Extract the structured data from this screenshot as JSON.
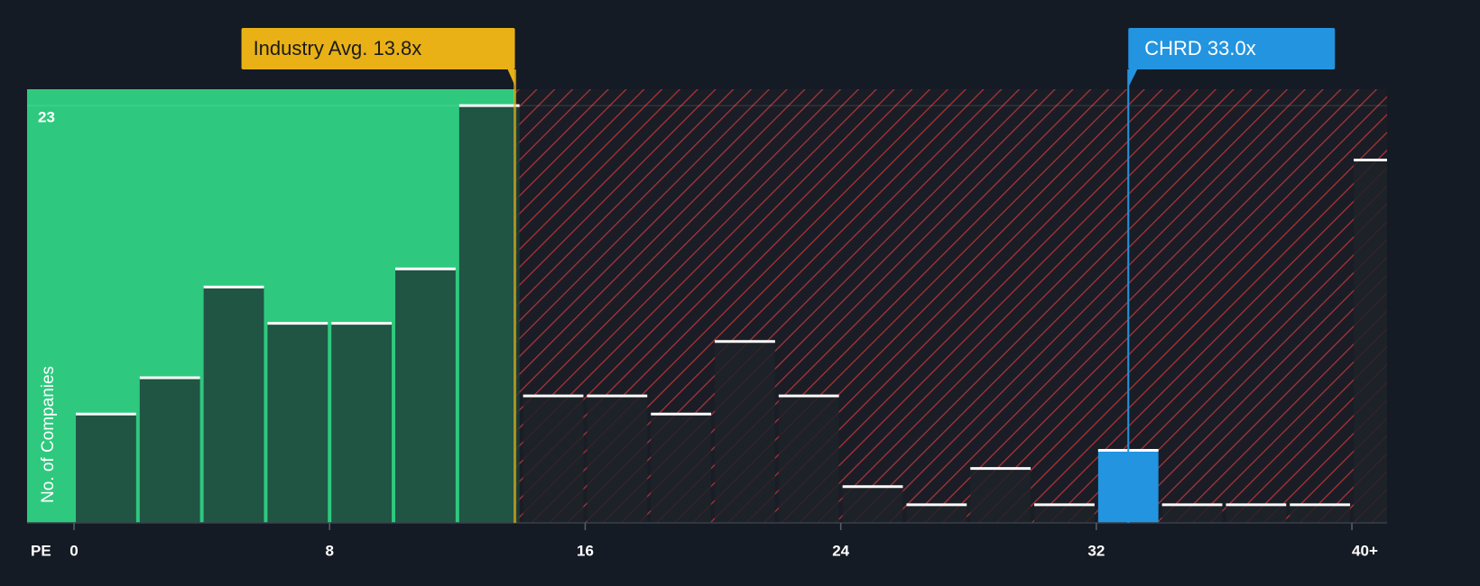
{
  "chart_data": {
    "type": "histogram",
    "x_label": "PE",
    "y_label": "No. of Companies",
    "bins": [
      0,
      2,
      4,
      6,
      8,
      10,
      12,
      14,
      16,
      18,
      20,
      22,
      24,
      26,
      28,
      30,
      32,
      34,
      36,
      38,
      40,
      42
    ],
    "values": [
      6,
      8,
      13,
      11,
      11,
      14,
      23,
      7,
      7,
      6,
      10,
      7,
      2,
      1,
      3,
      1,
      4,
      1,
      1,
      1,
      20
    ],
    "highlight_index": 16,
    "xlim": [
      -1.47,
      41.1
    ],
    "ylim": [
      0,
      23.9
    ],
    "xticks": [
      0,
      8,
      16,
      24,
      32,
      {
        "value": 40,
        "label": "40+"
      }
    ],
    "yticks": [
      23
    ],
    "industry_avg": {
      "label": "Industry Avg. 13.8x",
      "value": 13.8,
      "color": "#e9b116"
    },
    "company": {
      "label": "CHRD 33.0x",
      "value": 33.0,
      "color": "#2394e0"
    },
    "colors": {
      "below": "#2ec97e",
      "above": "#d13a3a",
      "bar": "#1d3f38",
      "bar_above": "#1f2229",
      "cap": "#ffffff"
    }
  }
}
